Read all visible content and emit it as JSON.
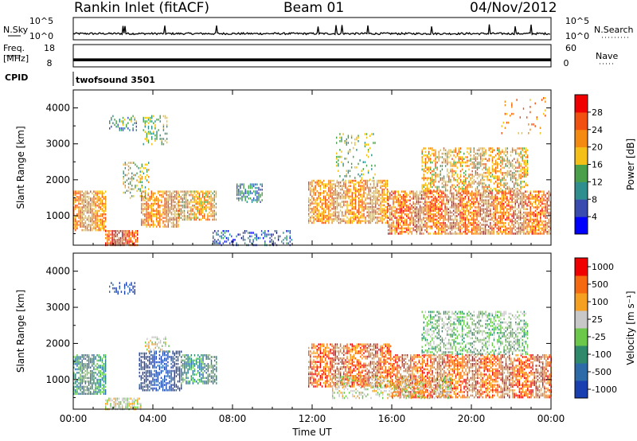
{
  "header": {
    "site_title": "Rankin Inlet (fitACF)",
    "beam_label": "Beam 01",
    "date_label": "04/Nov/2012"
  },
  "chart_data": [
    {
      "type": "line",
      "panel": "noise",
      "left_label": "N.Sky",
      "right_label": "N.Search",
      "right_label_style": "dotted",
      "left_ticks": [
        "10^5",
        "10^0"
      ],
      "right_ticks": [
        "10^5",
        "10^0"
      ],
      "x_range_hours": [
        0,
        24
      ],
      "series": [
        {
          "name": "N.Sky",
          "style": "solid",
          "typical_log10": 1.2,
          "spikes_hours": [
            2.5,
            2.6,
            4.6,
            7.2,
            12.3,
            13.2,
            13.5,
            14.8,
            18.0,
            20.9,
            22.2,
            23.0
          ]
        },
        {
          "name": "N.Search",
          "style": "dotted"
        }
      ]
    },
    {
      "type": "line",
      "panel": "frequency",
      "left_label": "Freq.",
      "left_unit": "[MHz]",
      "left_ticks": [
        "18",
        "8"
      ],
      "left_range": [
        8,
        18
      ],
      "right_label": "Nave",
      "right_label_style": "dotted",
      "right_ticks": [
        "60",
        "0"
      ],
      "right_range": [
        0,
        60
      ],
      "series": [
        {
          "name": "Freq.",
          "value_range": [
            10.5,
            11.8
          ],
          "x_range_hours": [
            0,
            24
          ]
        },
        {
          "name": "Nave",
          "style": "dotted"
        }
      ]
    },
    {
      "type": "table",
      "panel": "cpid",
      "label": "CPID",
      "entries": [
        {
          "start_hour": 0,
          "text": "twofsound 3501"
        }
      ]
    },
    {
      "type": "heatmap",
      "panel": "power",
      "ylabel": "Slant Range [km]",
      "ylim": [
        180,
        4500
      ],
      "y_ticks": [
        1000,
        2000,
        3000,
        4000
      ],
      "xlim": [
        0,
        24
      ],
      "x_ticks": [
        "00:00",
        "04:00",
        "08:00",
        "12:00",
        "16:00",
        "20:00",
        "00:00"
      ],
      "colorbar": {
        "label": "Power [dB]",
        "ticks": [
          4,
          8,
          12,
          16,
          20,
          24,
          28
        ],
        "range": [
          0,
          32
        ],
        "colors": [
          "#0000ff",
          "#3a4bb0",
          "#2f8f8f",
          "#4aa04a",
          "#f4c018",
          "#f58a10",
          "#f25010",
          "#f00000"
        ]
      },
      "regions": [
        {
          "t": [
            0.0,
            1.6
          ],
          "r": [
            600,
            1700
          ],
          "mean": 22,
          "density": 0.75
        },
        {
          "t": [
            1.6,
            3.2
          ],
          "r": [
            180,
            600
          ],
          "mean": 26,
          "density": 0.8
        },
        {
          "t": [
            2.5,
            3.8
          ],
          "r": [
            1500,
            2500
          ],
          "mean": 16,
          "density": 0.3
        },
        {
          "t": [
            1.8,
            3.2
          ],
          "r": [
            3400,
            3800
          ],
          "mean": 12,
          "density": 0.35
        },
        {
          "t": [
            3.4,
            5.3
          ],
          "r": [
            700,
            1700
          ],
          "mean": 22,
          "density": 0.7
        },
        {
          "t": [
            5.3,
            7.2
          ],
          "r": [
            900,
            1700
          ],
          "mean": 20,
          "density": 0.7
        },
        {
          "t": [
            3.5,
            4.7
          ],
          "r": [
            3000,
            3800
          ],
          "mean": 14,
          "density": 0.3
        },
        {
          "t": [
            8.2,
            9.5
          ],
          "r": [
            1400,
            1900
          ],
          "mean": 10,
          "density": 0.5
        },
        {
          "t": [
            7.0,
            11.0
          ],
          "r": [
            180,
            600
          ],
          "mean": 7,
          "density": 0.35
        },
        {
          "t": [
            11.8,
            15.8
          ],
          "r": [
            800,
            2000
          ],
          "mean": 22,
          "density": 0.65
        },
        {
          "t": [
            13.2,
            15.2
          ],
          "r": [
            2000,
            3300
          ],
          "mean": 14,
          "density": 0.2
        },
        {
          "t": [
            15.8,
            24.0
          ],
          "r": [
            500,
            1700
          ],
          "mean": 24,
          "density": 0.7
        },
        {
          "t": [
            17.5,
            22.8
          ],
          "r": [
            1700,
            2900
          ],
          "mean": 20,
          "density": 0.5
        },
        {
          "t": [
            21.5,
            23.8
          ],
          "r": [
            3300,
            4300
          ],
          "mean": 22,
          "density": 0.08
        }
      ]
    },
    {
      "type": "heatmap",
      "panel": "velocity",
      "ylabel": "Slant Range [km]",
      "ylim": [
        180,
        4500
      ],
      "y_ticks": [
        1000,
        2000,
        3000,
        4000
      ],
      "xlabel": "Time UT",
      "xlim": [
        0,
        24
      ],
      "x_ticks": [
        "00:00",
        "04:00",
        "08:00",
        "12:00",
        "16:00",
        "20:00",
        "00:00"
      ],
      "colorbar": {
        "label": "Velocity [m s⁻¹]",
        "ticks": [
          "1000",
          "500",
          "100",
          "25",
          "-25",
          "-100",
          "-500",
          "-1000"
        ],
        "colors": [
          "#1a3fb0",
          "#2c6aa8",
          "#2e8a6a",
          "#6cc84a",
          "#c8c8c8",
          "#f5a020",
          "#f56a10",
          "#f00000"
        ]
      },
      "regions": [
        {
          "t": [
            0.0,
            1.6
          ],
          "r": [
            600,
            1700
          ],
          "mean_index": 2,
          "density": 0.7
        },
        {
          "t": [
            1.6,
            3.4
          ],
          "r": [
            180,
            500
          ],
          "mean_index": 4,
          "density": 0.6
        },
        {
          "t": [
            3.3,
            5.4
          ],
          "r": [
            700,
            1800
          ],
          "mean_index": 0,
          "density": 0.6
        },
        {
          "t": [
            5.4,
            7.2
          ],
          "r": [
            900,
            1700
          ],
          "mean_index": 2,
          "density": 0.6
        },
        {
          "t": [
            1.8,
            3.2
          ],
          "r": [
            3400,
            3700
          ],
          "mean_index": 0,
          "density": 0.3
        },
        {
          "t": [
            3.6,
            4.8
          ],
          "r": [
            1800,
            2200
          ],
          "mean_index": 4,
          "density": 0.4
        },
        {
          "t": [
            11.8,
            16.0
          ],
          "r": [
            800,
            2000
          ],
          "mean_index": 6,
          "density": 0.65
        },
        {
          "t": [
            16.0,
            24.0
          ],
          "r": [
            500,
            1700
          ],
          "mean_index": 6,
          "density": 0.65
        },
        {
          "t": [
            17.5,
            22.8
          ],
          "r": [
            1700,
            2900
          ],
          "mean_index": 3,
          "density": 0.45
        },
        {
          "t": [
            13.0,
            19.0
          ],
          "r": [
            500,
            1100
          ],
          "mean_index": 4,
          "density": 0.35
        }
      ]
    }
  ]
}
